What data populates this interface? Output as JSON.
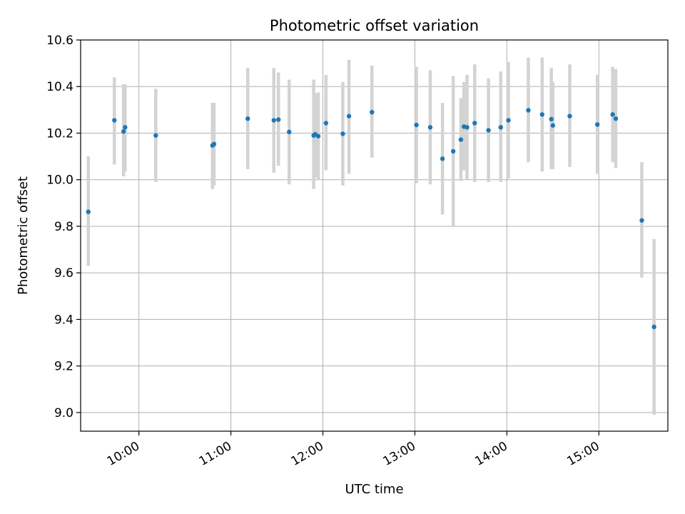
{
  "chart_data": {
    "type": "scatter",
    "title": "Photometric offset variation",
    "xlabel": "UTC time",
    "ylabel": "Photometric offset",
    "xlim": [
      "09:22",
      "15:45"
    ],
    "ylim": [
      8.92,
      10.6
    ],
    "x_ticks": [
      "10:00",
      "11:00",
      "12:00",
      "13:00",
      "14:00",
      "15:00"
    ],
    "y_ticks": [
      "9.0",
      "9.2",
      "9.4",
      "9.6",
      "9.8",
      "10.0",
      "10.2",
      "10.4",
      "10.6"
    ],
    "grid": true,
    "colors": {
      "points": "#1f77b4",
      "error_bars": "#d3d3d3",
      "grid": "#b0b0b0"
    },
    "series": [
      {
        "points": [
          {
            "x": "09:27",
            "y": 9.862,
            "lo": 9.63,
            "hi": 10.1
          },
          {
            "x": "09:44",
            "y": 10.255,
            "lo": 10.065,
            "hi": 10.44
          },
          {
            "x": "09:50",
            "y": 10.207,
            "lo": 10.015,
            "hi": 10.41
          },
          {
            "x": "09:51",
            "y": 10.225,
            "lo": 10.035,
            "hi": 10.41
          },
          {
            "x": "10:11",
            "y": 10.19,
            "lo": 9.99,
            "hi": 10.39
          },
          {
            "x": "10:48",
            "y": 10.147,
            "lo": 9.96,
            "hi": 10.33
          },
          {
            "x": "10:49",
            "y": 10.153,
            "lo": 9.975,
            "hi": 10.33
          },
          {
            "x": "11:11",
            "y": 10.262,
            "lo": 10.045,
            "hi": 10.48
          },
          {
            "x": "11:28",
            "y": 10.255,
            "lo": 10.03,
            "hi": 10.48
          },
          {
            "x": "11:31",
            "y": 10.258,
            "lo": 10.06,
            "hi": 10.46
          },
          {
            "x": "11:38",
            "y": 10.205,
            "lo": 9.98,
            "hi": 10.43
          },
          {
            "x": "11:54",
            "y": 10.19,
            "lo": 9.96,
            "hi": 10.43
          },
          {
            "x": "11:55",
            "y": 10.195,
            "lo": 10.01,
            "hi": 10.37
          },
          {
            "x": "11:57",
            "y": 10.187,
            "lo": 10.0,
            "hi": 10.375
          },
          {
            "x": "12:02",
            "y": 10.243,
            "lo": 10.04,
            "hi": 10.45
          },
          {
            "x": "12:13",
            "y": 10.197,
            "lo": 9.975,
            "hi": 10.42
          },
          {
            "x": "12:17",
            "y": 10.273,
            "lo": 10.025,
            "hi": 10.515
          },
          {
            "x": "12:32",
            "y": 10.29,
            "lo": 10.095,
            "hi": 10.49
          },
          {
            "x": "13:01",
            "y": 10.235,
            "lo": 9.985,
            "hi": 10.485
          },
          {
            "x": "13:10",
            "y": 10.225,
            "lo": 9.98,
            "hi": 10.47
          },
          {
            "x": "13:18",
            "y": 10.09,
            "lo": 9.85,
            "hi": 10.33
          },
          {
            "x": "13:25",
            "y": 10.122,
            "lo": 9.8,
            "hi": 10.445
          },
          {
            "x": "13:30",
            "y": 10.172,
            "lo": 9.995,
            "hi": 10.35
          },
          {
            "x": "13:32",
            "y": 10.228,
            "lo": 10.04,
            "hi": 10.42
          },
          {
            "x": "13:34",
            "y": 10.225,
            "lo": 10.0,
            "hi": 10.45
          },
          {
            "x": "13:39",
            "y": 10.243,
            "lo": 9.99,
            "hi": 10.495
          },
          {
            "x": "13:48",
            "y": 10.212,
            "lo": 9.99,
            "hi": 10.435
          },
          {
            "x": "13:56",
            "y": 10.225,
            "lo": 9.99,
            "hi": 10.465
          },
          {
            "x": "14:01",
            "y": 10.255,
            "lo": 10.005,
            "hi": 10.505
          },
          {
            "x": "14:14",
            "y": 10.298,
            "lo": 10.075,
            "hi": 10.525
          },
          {
            "x": "14:23",
            "y": 10.28,
            "lo": 10.035,
            "hi": 10.525
          },
          {
            "x": "14:29",
            "y": 10.26,
            "lo": 10.045,
            "hi": 10.48
          },
          {
            "x": "14:30",
            "y": 10.233,
            "lo": 10.045,
            "hi": 10.42
          },
          {
            "x": "14:41",
            "y": 10.273,
            "lo": 10.055,
            "hi": 10.495
          },
          {
            "x": "14:59",
            "y": 10.237,
            "lo": 10.025,
            "hi": 10.45
          },
          {
            "x": "15:09",
            "y": 10.28,
            "lo": 10.075,
            "hi": 10.485
          },
          {
            "x": "15:11",
            "y": 10.262,
            "lo": 10.05,
            "hi": 10.475
          },
          {
            "x": "15:28",
            "y": 9.825,
            "lo": 9.58,
            "hi": 10.075
          },
          {
            "x": "15:36",
            "y": 9.368,
            "lo": 8.99,
            "hi": 9.745
          }
        ]
      }
    ]
  }
}
